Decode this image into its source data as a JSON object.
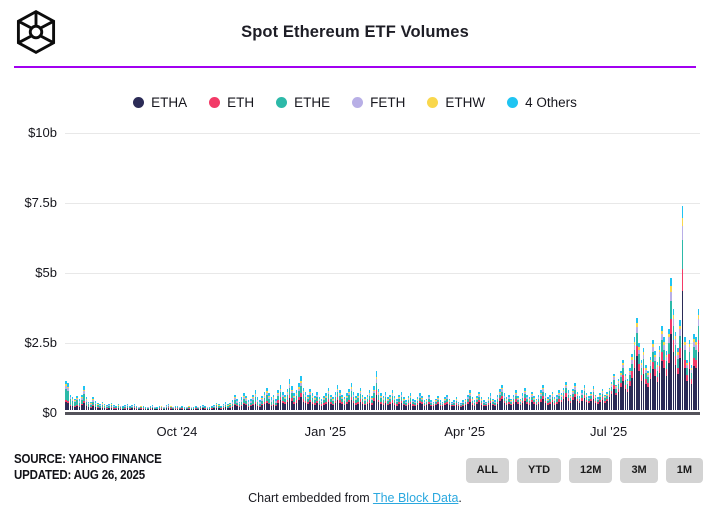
{
  "header": {
    "title": "Spot Ethereum ETF Volumes",
    "logo_icon": "the-block-cube-logo",
    "accent_line_color": "#A100F0"
  },
  "legend": [
    {
      "label": "ETHA",
      "color": "#2B2B56"
    },
    {
      "label": "ETH",
      "color": "#F23A67"
    },
    {
      "label": "ETHE",
      "color": "#2CB9A8"
    },
    {
      "label": "FETH",
      "color": "#B8AFE6"
    },
    {
      "label": "ETHW",
      "color": "#F9D74C"
    },
    {
      "label": "4 Others",
      "color": "#1FC4F2"
    }
  ],
  "chart_data": {
    "type": "bar",
    "stacked": true,
    "title": "Spot Ethereum ETF Volumes",
    "unit": "USD billions per day",
    "ylim": [
      0,
      10
    ],
    "grid": true,
    "legend_position": "top",
    "yticks": [
      {
        "label": "$10b",
        "value": 10
      },
      {
        "label": "$7.5b",
        "value": 7.5
      },
      {
        "label": "$5b",
        "value": 5
      },
      {
        "label": "$2.5b",
        "value": 2.5
      },
      {
        "label": "$0",
        "value": 0
      }
    ],
    "xticks": [
      {
        "label": "Oct '24",
        "index": 49
      },
      {
        "label": "Jan '25",
        "index": 114
      },
      {
        "label": "Apr '25",
        "index": 175
      },
      {
        "label": "Jul '25",
        "index": 238
      }
    ],
    "x_range": [
      "Jul 23, 2024",
      "Aug 26, 2025"
    ],
    "series_names": [
      "ETHA",
      "ETH",
      "ETHE",
      "FETH",
      "ETHW",
      "4 Others"
    ],
    "series_colors": [
      "#2B2B56",
      "#F23A67",
      "#2CB9A8",
      "#B8AFE6",
      "#F9D74C",
      "#1FC4F2"
    ],
    "bar_totals": [
      1.05,
      0.95,
      0.55,
      0.45,
      0.4,
      0.5,
      0.38,
      0.55,
      0.85,
      0.45,
      0.3,
      0.28,
      0.45,
      0.32,
      0.25,
      0.22,
      0.28,
      0.2,
      0.18,
      0.22,
      0.25,
      0.18,
      0.15,
      0.2,
      0.16,
      0.14,
      0.18,
      0.22,
      0.15,
      0.18,
      0.22,
      0.15,
      0.12,
      0.16,
      0.14,
      0.1,
      0.12,
      0.15,
      0.18,
      0.12,
      0.1,
      0.14,
      0.16,
      0.12,
      0.18,
      0.22,
      0.16,
      0.12,
      0.14,
      0.15,
      0.12,
      0.14,
      0.1,
      0.12,
      0.16,
      0.12,
      0.1,
      0.14,
      0.12,
      0.15,
      0.18,
      0.14,
      0.12,
      0.1,
      0.14,
      0.18,
      0.25,
      0.2,
      0.15,
      0.22,
      0.28,
      0.2,
      0.25,
      0.35,
      0.55,
      0.4,
      0.3,
      0.45,
      0.6,
      0.5,
      0.35,
      0.4,
      0.55,
      0.7,
      0.45,
      0.35,
      0.5,
      0.65,
      0.8,
      0.6,
      0.45,
      0.55,
      0.4,
      0.7,
      0.9,
      0.65,
      0.55,
      0.75,
      1.1,
      0.85,
      0.6,
      0.7,
      0.95,
      1.2,
      0.8,
      0.65,
      0.55,
      0.75,
      0.6,
      0.5,
      0.65,
      0.45,
      0.4,
      0.5,
      0.6,
      0.8,
      0.55,
      0.45,
      0.65,
      0.9,
      0.7,
      0.55,
      0.45,
      0.6,
      0.75,
      0.95,
      0.65,
      0.5,
      0.6,
      0.8,
      0.55,
      0.45,
      0.55,
      0.7,
      0.5,
      0.85,
      1.4,
      0.75,
      0.6,
      0.5,
      0.65,
      0.45,
      0.55,
      0.7,
      0.5,
      0.4,
      0.55,
      0.65,
      0.45,
      0.35,
      0.5,
      0.6,
      0.4,
      0.35,
      0.45,
      0.6,
      0.5,
      0.35,
      0.4,
      0.55,
      0.35,
      0.3,
      0.4,
      0.5,
      0.35,
      0.3,
      0.45,
      0.55,
      0.4,
      0.3,
      0.35,
      0.45,
      0.3,
      0.25,
      0.35,
      0.4,
      0.55,
      0.7,
      0.45,
      0.35,
      0.5,
      0.65,
      0.45,
      0.35,
      0.3,
      0.45,
      0.6,
      0.4,
      0.35,
      0.55,
      0.75,
      0.9,
      0.6,
      0.45,
      0.55,
      0.4,
      0.55,
      0.7,
      0.5,
      0.4,
      0.6,
      0.8,
      0.55,
      0.45,
      0.65,
      0.5,
      0.4,
      0.55,
      0.7,
      0.9,
      0.6,
      0.45,
      0.55,
      0.65,
      0.45,
      0.55,
      0.7,
      0.6,
      0.8,
      1.0,
      0.7,
      0.55,
      0.75,
      0.95,
      0.65,
      0.5,
      0.7,
      0.9,
      0.6,
      0.5,
      0.65,
      0.85,
      0.55,
      0.45,
      0.6,
      0.75,
      0.55,
      0.65,
      0.8,
      1.0,
      1.3,
      0.9,
      1.1,
      1.4,
      1.8,
      1.3,
      1.1,
      1.5,
      2.0,
      2.6,
      3.3,
      2.4,
      1.8,
      2.2,
      1.6,
      1.4,
      1.9,
      2.5,
      2.1,
      1.7,
      2.3,
      3.0,
      2.6,
      2.1,
      2.9,
      4.7,
      3.6,
      2.8,
      2.2,
      3.2,
      7.3,
      2.6,
      1.8,
      2.5,
      1.6,
      2.7,
      2.6,
      3.6
    ],
    "composition_eras": [
      {
        "until_index": 7,
        "fractions": [
          0.28,
          0.06,
          0.36,
          0.12,
          0.05,
          0.13
        ]
      },
      {
        "until_index": 29,
        "fractions": [
          0.3,
          0.07,
          0.3,
          0.12,
          0.05,
          0.16
        ]
      },
      {
        "until_index": 93,
        "fractions": [
          0.33,
          0.09,
          0.24,
          0.12,
          0.05,
          0.17
        ]
      },
      {
        "until_index": 154,
        "fractions": [
          0.38,
          0.12,
          0.2,
          0.1,
          0.05,
          0.15
        ]
      },
      {
        "until_index": 217,
        "fractions": [
          0.42,
          0.13,
          0.18,
          0.09,
          0.04,
          0.14
        ]
      },
      {
        "until_index": 238,
        "fractions": [
          0.48,
          0.13,
          0.16,
          0.08,
          0.04,
          0.11
        ]
      },
      {
        "until_index": 278,
        "fractions": [
          0.58,
          0.11,
          0.14,
          0.07,
          0.04,
          0.06
        ]
      }
    ]
  },
  "source": {
    "line1": "SOURCE: YAHOO FINANCE",
    "line2": "UPDATED: AUG 26, 2025"
  },
  "range_buttons": [
    "ALL",
    "YTD",
    "12M",
    "3M",
    "1M"
  ],
  "footer": {
    "prefix": "Chart embedded from ",
    "link_text": "The Block Data",
    "suffix": "."
  }
}
